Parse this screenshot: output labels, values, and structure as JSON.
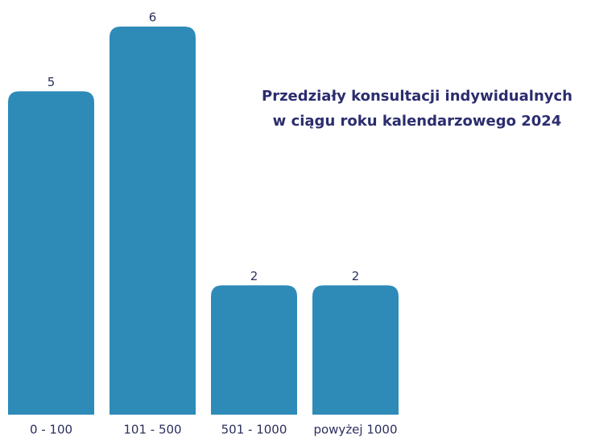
{
  "chart_data": {
    "type": "bar",
    "title": [
      "Przedziały konsultacji indywidualnych",
      "w ciągu roku kalendarzowego 2024"
    ],
    "categories": [
      "0 - 100",
      "101 - 500",
      "501 - 1000",
      "powyżej 1000"
    ],
    "values": [
      5,
      6,
      2,
      2
    ],
    "color": "#2e8bb8"
  }
}
